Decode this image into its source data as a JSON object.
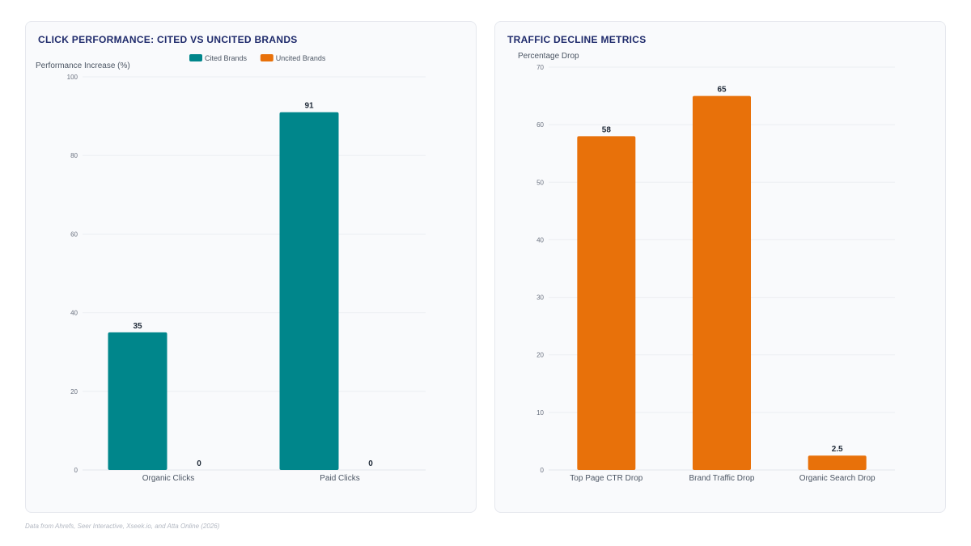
{
  "chart_data": [
    {
      "type": "bar",
      "title": "CLICK PERFORMANCE: CITED VS UNCITED BRANDS",
      "ylabel": "Performance Increase (%)",
      "xlabel": "",
      "ylim": [
        0,
        100
      ],
      "yticks": [
        0,
        20,
        40,
        60,
        80,
        100
      ],
      "categories": [
        "Organic Clicks",
        "Paid Clicks"
      ],
      "series": [
        {
          "name": "Cited Brands",
          "color": "#00868b",
          "values": [
            35,
            91
          ]
        },
        {
          "name": "Uncited Brands",
          "color": "#e8710a",
          "values": [
            0,
            0
          ]
        }
      ],
      "legend": "top-center",
      "grid": true
    },
    {
      "type": "bar",
      "title": "TRAFFIC DECLINE METRICS",
      "ylabel": "Percentage Drop",
      "xlabel": "",
      "ylim": [
        0,
        70
      ],
      "yticks": [
        0,
        10,
        20,
        30,
        40,
        50,
        60,
        70
      ],
      "categories": [
        "Top Page CTR Drop",
        "Brand Traffic Drop",
        "Organic Search Drop"
      ],
      "series": [
        {
          "color": "#e8710a",
          "values": [
            58,
            65,
            2.5
          ]
        }
      ],
      "grid": true
    }
  ],
  "footnote": "Data from Ahrefs, Seer Interactive, Xseek.io, and Atta Online (2026)"
}
